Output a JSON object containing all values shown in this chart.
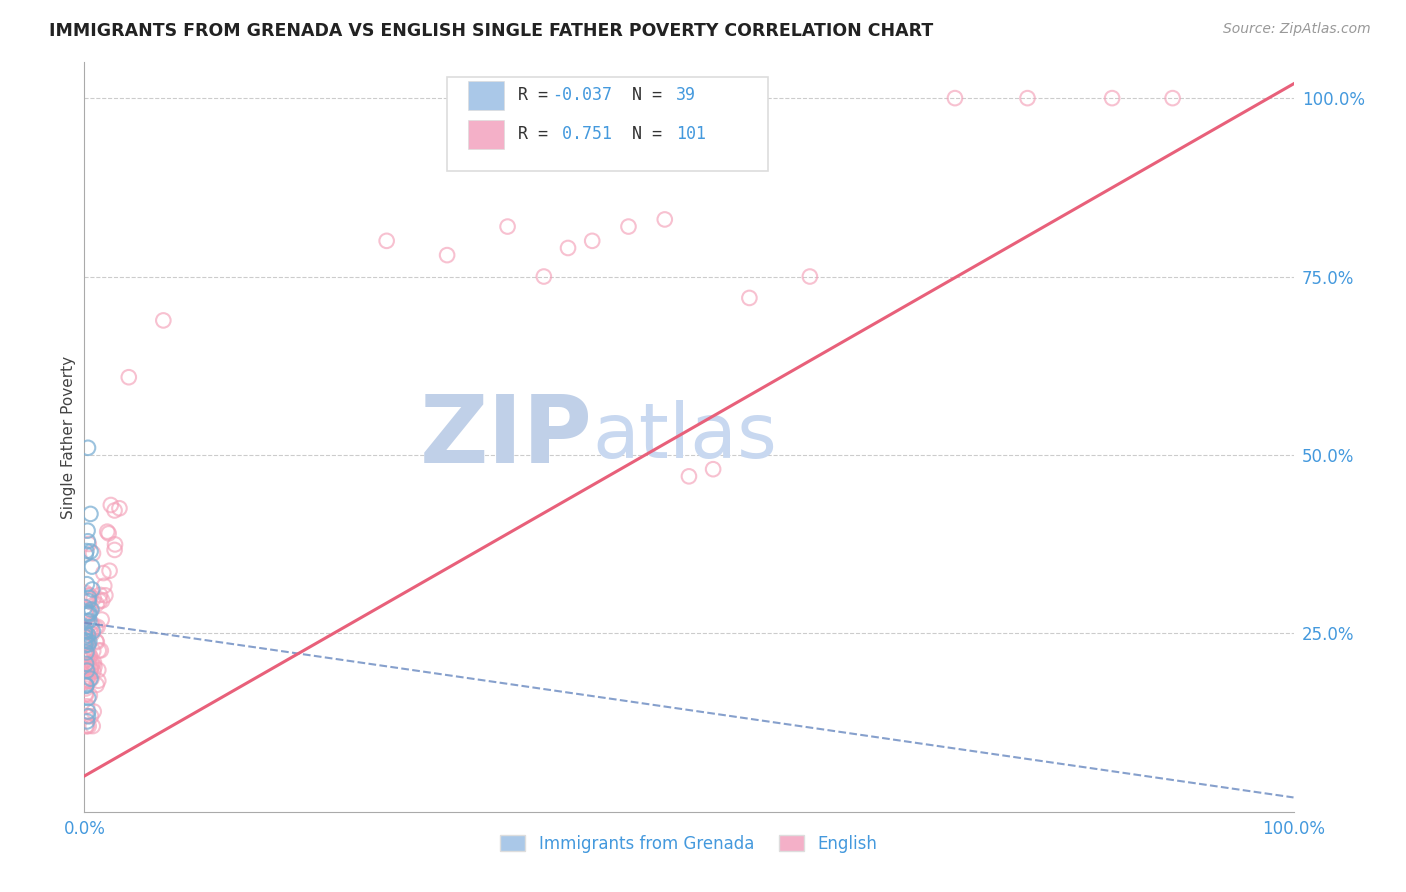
{
  "title": "IMMIGRANTS FROM GRENADA VS ENGLISH SINGLE FATHER POVERTY CORRELATION CHART",
  "source": "Source: ZipAtlas.com",
  "ylabel": "Single Father Poverty",
  "xlim": [
    0.0,
    1.0
  ],
  "ylim": [
    0.0,
    1.05
  ],
  "xtick_vals": [
    0.0,
    0.25,
    0.5,
    0.75,
    1.0
  ],
  "xtick_labels": [
    "0.0%",
    "",
    "",
    "",
    "100.0%"
  ],
  "ytick_vals": [
    0.25,
    0.5,
    0.75,
    1.0
  ],
  "ytick_labels": [
    "25.0%",
    "50.0%",
    "75.0%",
    "100.0%"
  ],
  "blue_scatter_color": "#7bafd4",
  "pink_scatter_color": "#f4a0b8",
  "blue_line_color": "#6888c0",
  "pink_line_color": "#e8607a",
  "blue_legend_color": "#aac8e8",
  "pink_legend_color": "#f4b0c8",
  "watermark_zip_color": "#c0d0e8",
  "watermark_atlas_color": "#c8d8f0",
  "tick_label_color": "#4499dd",
  "ylabel_color": "#444444",
  "title_color": "#222222",
  "source_color": "#999999",
  "grid_color": "#cccccc",
  "legend_border_color": "#dddddd",
  "legend_text_color": "#e05090",
  "legend_num_color": "#4499dd",
  "blue_line": {
    "x0": 0.0,
    "y0": 0.265,
    "x1": 1.0,
    "y1": 0.02
  },
  "pink_line": {
    "x0": 0.0,
    "y0": 0.05,
    "x1": 1.0,
    "y1": 1.02
  }
}
